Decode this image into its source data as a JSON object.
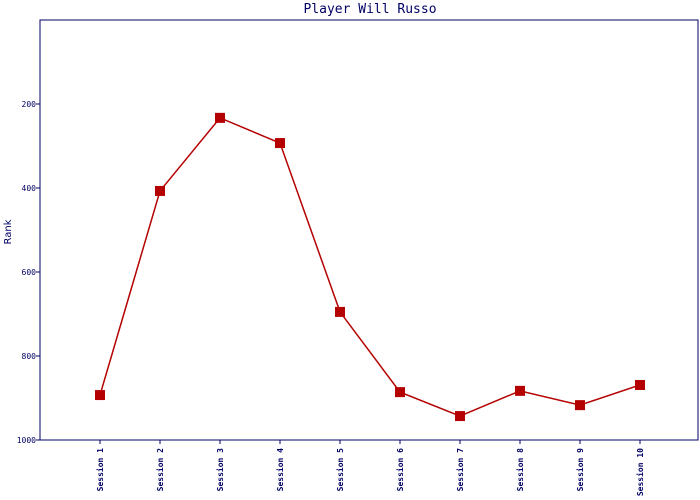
{
  "chart_data": {
    "type": "line",
    "title": "Player Will Russo",
    "y_label": "Rank",
    "categories": [
      "Session 1",
      "Session 2",
      "Session 3",
      "Session 4",
      "Session 5",
      "Session 6",
      "Session 7",
      "Session 8",
      "Session 9",
      "Session 10"
    ],
    "values": [
      893,
      407,
      233,
      293,
      695,
      886,
      943,
      883,
      917,
      869
    ],
    "color": "#b40000",
    "ylim": [
      0,
      1000
    ],
    "y_inverted": true,
    "yticks": [
      200,
      400,
      600,
      800,
      1000
    ],
    "grid": false
  }
}
